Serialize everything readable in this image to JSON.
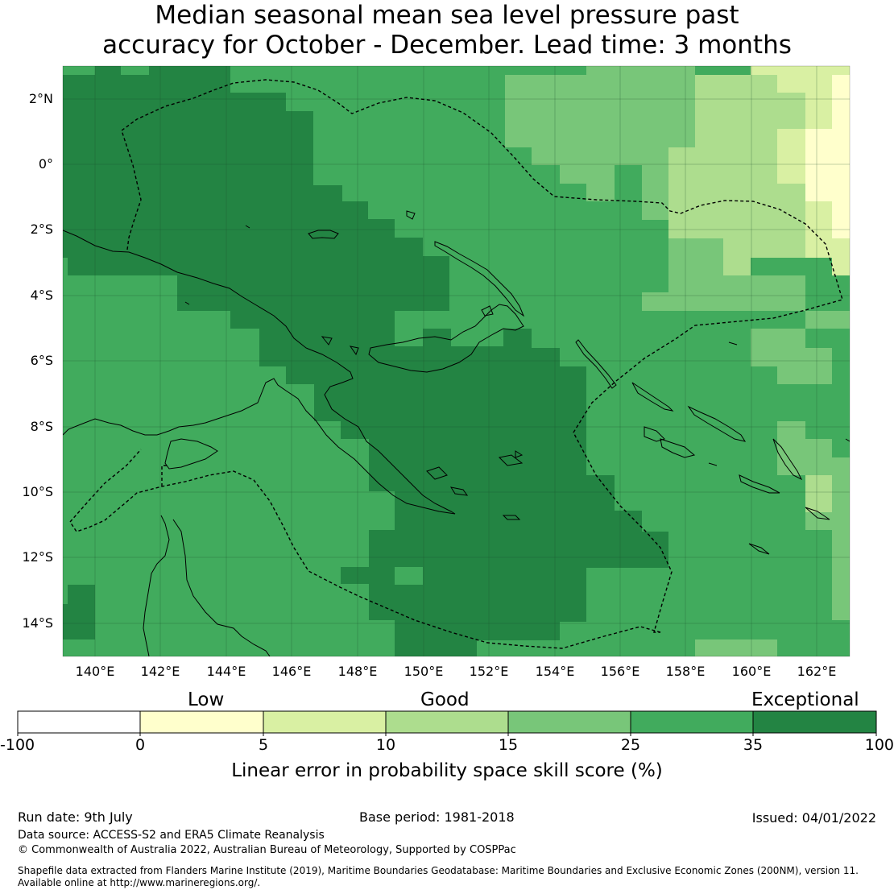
{
  "title_line1": "Median seasonal mean sea level pressure past",
  "title_line2": "accuracy for October - December. Lead time: 3 months",
  "map": {
    "lon_range": [
      139,
      163
    ],
    "lat_range": [
      -15,
      3
    ],
    "lat_ticks": [
      {
        "value": 2,
        "label": "2°N"
      },
      {
        "value": 0,
        "label": "0°"
      },
      {
        "value": -2,
        "label": "2°S"
      },
      {
        "value": -4,
        "label": "4°S"
      },
      {
        "value": -6,
        "label": "6°S"
      },
      {
        "value": -8,
        "label": "8°S"
      },
      {
        "value": -10,
        "label": "10°S"
      },
      {
        "value": -12,
        "label": "12°S"
      },
      {
        "value": -14,
        "label": "14°S"
      }
    ],
    "lon_ticks": [
      {
        "value": 140,
        "label": "140°E"
      },
      {
        "value": 142,
        "label": "142°E"
      },
      {
        "value": 144,
        "label": "144°E"
      },
      {
        "value": 146,
        "label": "146°E"
      },
      {
        "value": 148,
        "label": "148°E"
      },
      {
        "value": 150,
        "label": "150°E"
      },
      {
        "value": 152,
        "label": "152°E"
      },
      {
        "value": 154,
        "label": "154°E"
      },
      {
        "value": 156,
        "label": "156°E"
      },
      {
        "value": 158,
        "label": "158°E"
      },
      {
        "value": 160,
        "label": "160°E"
      },
      {
        "value": 162,
        "label": "162°E"
      }
    ],
    "grid": true,
    "eez_boundary": "dashed",
    "coastlines": "solid"
  },
  "colorbar": {
    "categories": [
      "Low",
      "Good",
      "Exceptional"
    ],
    "ticks": [
      "-100",
      "0",
      "5",
      "10",
      "15",
      "25",
      "35",
      "100"
    ],
    "colors": [
      "#ffffff",
      "#ffffcc",
      "#d9f0a3",
      "#addd8e",
      "#78c679",
      "#41ab5d",
      "#238443"
    ],
    "label": "Linear error in probability space skill score (%)"
  },
  "chart_data": {
    "type": "heatmap",
    "title": "Median seasonal mean sea level pressure past accuracy for October - December. Lead time: 3 months",
    "xlabel": "",
    "ylabel": "",
    "x_range": [
      139,
      163
    ],
    "y_range": [
      -15,
      3
    ],
    "legend_label": "Linear error in probability space skill score (%)",
    "bins": [
      {
        "range": [
          -100,
          0
        ],
        "color": "#ffffff"
      },
      {
        "range": [
          0,
          5
        ],
        "color": "#ffffcc"
      },
      {
        "range": [
          5,
          10
        ],
        "color": "#d9f0a3"
      },
      {
        "range": [
          10,
          15
        ],
        "color": "#addd8e"
      },
      {
        "range": [
          15,
          25
        ],
        "color": "#78c679"
      },
      {
        "range": [
          25,
          35
        ],
        "color": "#41ab5d"
      },
      {
        "range": [
          35,
          100
        ],
        "color": "#238443"
      }
    ],
    "regions": [
      {
        "lon": [
          139,
          145.5
        ],
        "lat": [
          0,
          2.8
        ],
        "bin": "35-100"
      },
      {
        "lon": [
          139,
          148
        ],
        "lat": [
          -4,
          0
        ],
        "bin": "35-100"
      },
      {
        "lon": [
          145.5,
          152
        ],
        "lat": [
          -8,
          -4
        ],
        "bin": "35-100"
      },
      {
        "lon": [
          148,
          156.5
        ],
        "lat": [
          -14.5,
          -6
        ],
        "bin": "35-100"
      },
      {
        "lon": [
          156,
          158
        ],
        "lat": [
          -4,
          3
        ],
        "bin": "15-25"
      },
      {
        "lon": [
          158,
          160.5
        ],
        "lat": [
          -3,
          3
        ],
        "bin": "10-15"
      },
      {
        "lon": [
          160.5,
          163
        ],
        "lat": [
          -3,
          3
        ],
        "bin": "5-10"
      },
      {
        "lon": [
          162.5,
          163
        ],
        "lat": [
          -3,
          2.5
        ],
        "bin": "0-5"
      },
      {
        "lon": [
          139,
          163
        ],
        "lat": [
          -15,
          3
        ],
        "bin": "25-35"
      }
    ]
  },
  "footer": {
    "run_date": "Run date: 9th July",
    "base_period": "Base period: 1981-2018",
    "issued": "Issued: 04/01/2022",
    "data_source": "Data source: ACCESS-S2 and ERA5 Climate Reanalysis",
    "copyright": "© Commonwealth of Australia 2022, Australian Bureau of Meteorology, Supported by COSPPac",
    "shapefile_line1": "Shapefile data extracted from Flanders Marine Institute (2019), Maritime Boundaries Geodatabase: Maritime Boundaries and Exclusive Economic Zones (200NM), version 11.",
    "shapefile_line2": "Available online at http://www.marineregions.org/."
  }
}
